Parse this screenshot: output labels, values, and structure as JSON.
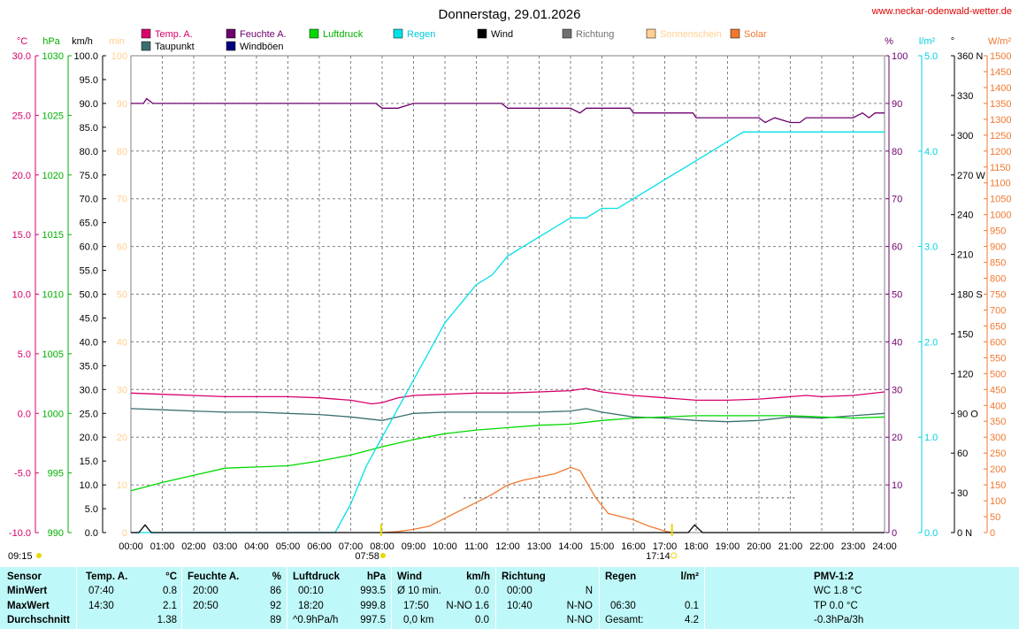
{
  "header": {
    "title": "Donnerstag, 29.01.2026",
    "site": "www.neckar-odenwald-wetter.de"
  },
  "legend": [
    {
      "label": "Temp. A.",
      "color": "#d8006a"
    },
    {
      "label": "Taupunkt",
      "color": "#3a6e6e"
    },
    {
      "label": "Feuchte A.",
      "color": "#6e006e"
    },
    {
      "label": "Windböen",
      "color": "#000080"
    },
    {
      "label": "Luftdruck",
      "color": "#00d800"
    },
    {
      "label": "Regen",
      "color": "#00e0e8"
    },
    {
      "label": "Wind",
      "color": "#000000"
    },
    {
      "label": "Richtung",
      "color": "#707070"
    },
    {
      "label": "Sonnenschein",
      "color": "#ffd090"
    },
    {
      "label": "Solar",
      "color": "#f07830"
    }
  ],
  "axes_units": {
    "temp": "°C",
    "pressure": "hPa",
    "wind": "km/h",
    "sunshine": "min",
    "humidity": "%",
    "rain": "l/m²",
    "direction": "°",
    "solar": "W/m²"
  },
  "time_marks": {
    "left": "09:15",
    "sunrise": "07:58",
    "sunset": "17:14"
  },
  "chart_data": {
    "type": "line",
    "x_unit": "hour of day",
    "xlim": [
      0,
      24
    ],
    "x_ticks": [
      "00:00",
      "01:00",
      "02:00",
      "03:00",
      "04:00",
      "05:00",
      "06:00",
      "07:00",
      "08:00",
      "09:00",
      "10:00",
      "11:00",
      "12:00",
      "13:00",
      "14:00",
      "15:00",
      "16:00",
      "17:00",
      "18:00",
      "19:00",
      "20:00",
      "21:00",
      "22:00",
      "23:00",
      "24:00"
    ],
    "grid": true,
    "axes": {
      "temp_c": {
        "range": [
          -10,
          30
        ],
        "ticks": [
          "-10.0",
          "-5.0",
          "0.0",
          "5.0",
          "10.0",
          "15.0",
          "20.0",
          "25.0",
          "30.0"
        ]
      },
      "pressure_hpa": {
        "range": [
          990,
          1030
        ],
        "ticks": [
          "990",
          "995",
          "1000",
          "1005",
          "1010",
          "1015",
          "1020",
          "1025",
          "1030"
        ]
      },
      "wind_kmh": {
        "range": [
          0,
          100
        ],
        "ticks": [
          "0.0",
          "5.0",
          "10.0",
          "15.0",
          "20.0",
          "25.0",
          "30.0",
          "35.0",
          "40.0",
          "45.0",
          "50.0",
          "55.0",
          "60.0",
          "65.0",
          "70.0",
          "75.0",
          "80.0",
          "85.0",
          "90.0",
          "95.0",
          "100.0"
        ]
      },
      "sunshine_min": {
        "range": [
          0,
          100
        ],
        "ticks": [
          "0",
          "10",
          "20",
          "30",
          "40",
          "50",
          "60",
          "70",
          "80",
          "90",
          "100"
        ]
      },
      "humidity_pct": {
        "range": [
          0,
          100
        ],
        "ticks": [
          "0",
          "10",
          "20",
          "30",
          "40",
          "50",
          "60",
          "70",
          "80",
          "90",
          "100"
        ]
      },
      "rain_lm2": {
        "range": [
          0,
          5
        ],
        "ticks": [
          "0.0",
          "1.0",
          "2.0",
          "3.0",
          "4.0",
          "5.0"
        ]
      },
      "direction_deg": {
        "range": [
          0,
          360
        ],
        "ticks": [
          "0 N",
          "30",
          "60",
          "90 O",
          "120",
          "150",
          "180 S",
          "210",
          "240",
          "270 W",
          "300",
          "330",
          "360 N"
        ]
      },
      "solar_wm2": {
        "range": [
          0,
          1500
        ],
        "ticks": [
          "0",
          "50",
          "100",
          "150",
          "200",
          "250",
          "300",
          "350",
          "400",
          "450",
          "500",
          "550",
          "600",
          "650",
          "700",
          "750",
          "800",
          "850",
          "900",
          "950",
          "1000",
          "1050",
          "1100",
          "1150",
          "1200",
          "1250",
          "1300",
          "1350",
          "1400",
          "1450",
          "1500"
        ]
      }
    },
    "series": [
      {
        "name": "Feuchte A.",
        "axis": "humidity_pct",
        "color": "#6e006e",
        "x": [
          0,
          0.4,
          0.5,
          0.7,
          1,
          2,
          3,
          4,
          5,
          6,
          7,
          7.8,
          8,
          8.5,
          9,
          10,
          11,
          11.8,
          12,
          13,
          14,
          14.3,
          14.5,
          15,
          15.9,
          16,
          17,
          17.9,
          18,
          19,
          20,
          20.2,
          20.5,
          21,
          21.3,
          21.5,
          22,
          23,
          23.3,
          23.5,
          23.7,
          24
        ],
        "y": [
          90,
          90,
          91,
          90,
          90,
          90,
          90,
          90,
          90,
          90,
          90,
          90,
          89,
          89,
          90,
          90,
          90,
          90,
          89,
          89,
          89,
          88,
          89,
          89,
          89,
          88,
          88,
          88,
          87,
          87,
          87,
          86,
          87,
          86,
          86,
          87,
          87,
          87,
          88,
          87,
          88,
          88
        ]
      },
      {
        "name": "Temp. A.",
        "axis": "temp_c",
        "color": "#d8006a",
        "x": [
          0,
          1,
          2,
          3,
          4,
          5,
          6,
          7,
          7.67,
          8,
          8.5,
          9,
          10,
          11,
          12,
          13,
          14,
          14.5,
          15,
          16,
          17,
          18,
          19,
          20,
          21,
          21.5,
          22,
          23,
          24
        ],
        "y": [
          1.7,
          1.6,
          1.5,
          1.4,
          1.4,
          1.4,
          1.3,
          1.1,
          0.8,
          0.9,
          1.3,
          1.5,
          1.6,
          1.7,
          1.7,
          1.8,
          1.9,
          2.1,
          1.8,
          1.5,
          1.3,
          1.1,
          1.1,
          1.2,
          1.4,
          1.5,
          1.4,
          1.5,
          1.8
        ]
      },
      {
        "name": "Taupunkt",
        "axis": "temp_c",
        "color": "#3a6e6e",
        "x": [
          0,
          1,
          2,
          3,
          4,
          5,
          6,
          7,
          8,
          8.5,
          9,
          10,
          11,
          12,
          13,
          14,
          14.5,
          15,
          16,
          17,
          18,
          19,
          20,
          21,
          22,
          23,
          24
        ],
        "y": [
          0.4,
          0.3,
          0.2,
          0.1,
          0.1,
          0.0,
          -0.1,
          -0.3,
          -0.6,
          -0.3,
          0.0,
          0.1,
          0.1,
          0.1,
          0.1,
          0.2,
          0.4,
          0.1,
          -0.3,
          -0.4,
          -0.6,
          -0.7,
          -0.6,
          -0.3,
          -0.4,
          -0.2,
          0.0
        ]
      },
      {
        "name": "Luftdruck",
        "axis": "pressure_hpa",
        "color": "#00d800",
        "x": [
          0,
          1,
          2,
          3,
          4,
          5,
          6,
          7,
          8,
          9,
          10,
          11,
          12,
          13,
          14,
          15,
          16,
          17,
          18,
          19,
          20,
          21,
          22,
          23,
          24
        ],
        "y": [
          993.5,
          994.2,
          994.8,
          995.4,
          995.5,
          995.6,
          996.0,
          996.5,
          997.2,
          997.8,
          998.3,
          998.6,
          998.8,
          999.0,
          999.1,
          999.4,
          999.6,
          999.7,
          999.8,
          999.8,
          999.8,
          999.8,
          999.7,
          999.6,
          999.7
        ]
      },
      {
        "name": "Regen",
        "axis": "rain_lm2",
        "color": "#00e0e8",
        "x": [
          0,
          6.5,
          7,
          7.5,
          8,
          8.5,
          9,
          9.5,
          10,
          10.5,
          11,
          11.5,
          12,
          12.5,
          13,
          13.5,
          14,
          14.5,
          15,
          15.5,
          16,
          16.5,
          17,
          17.5,
          18,
          18.5,
          19,
          19.5,
          20,
          21,
          22,
          23,
          24
        ],
        "y": [
          0,
          0,
          0.3,
          0.7,
          1.0,
          1.3,
          1.6,
          1.9,
          2.2,
          2.4,
          2.6,
          2.7,
          2.9,
          3.0,
          3.1,
          3.2,
          3.3,
          3.3,
          3.4,
          3.4,
          3.5,
          3.6,
          3.7,
          3.8,
          3.9,
          4.0,
          4.1,
          4.2,
          4.2,
          4.2,
          4.2,
          4.2,
          4.2
        ]
      },
      {
        "name": "Solar",
        "axis": "solar_wm2",
        "color": "#f07830",
        "x": [
          7.97,
          8.5,
          9,
          9.5,
          10,
          10.5,
          11,
          11.5,
          12,
          12.5,
          13,
          13.5,
          14,
          14.3,
          14.8,
          15.2,
          15.6,
          16,
          16.5,
          17,
          17.23
        ],
        "y": [
          0,
          3,
          10,
          20,
          45,
          70,
          95,
          120,
          150,
          165,
          175,
          185,
          205,
          195,
          110,
          60,
          50,
          40,
          20,
          5,
          0
        ]
      },
      {
        "name": "Sonnenschein",
        "axis": "sunshine_min",
        "color": "#707070",
        "x": [
          10.6,
          21.2
        ],
        "y": [
          7.3,
          7.3
        ]
      },
      {
        "name": "Wind",
        "axis": "wind_kmh",
        "color": "#000000",
        "x": [
          0,
          0.25,
          0.45,
          0.65,
          17.5,
          17.75,
          17.95,
          18.2,
          24
        ],
        "y": [
          0,
          0,
          1.6,
          0,
          0,
          0,
          1.6,
          0,
          0
        ]
      }
    ]
  },
  "table": {
    "headers": [
      "Sensor",
      "Temp. A.",
      "°C",
      "Feuchte A.",
      "%",
      "Luftdruck",
      "hPa",
      "Wind",
      "km/h",
      "Richtung",
      "Regen",
      "l/m²",
      "PMV-1:2"
    ],
    "labels": [
      "MinWert",
      "MaxWert",
      "Durchschnitt"
    ],
    "temp": [
      [
        "07:40",
        "0.8"
      ],
      [
        "14:30",
        "2.1"
      ],
      [
        "",
        "1.38"
      ]
    ],
    "humidity": [
      [
        "20:00",
        "86"
      ],
      [
        "20:50",
        "92"
      ],
      [
        "",
        "89"
      ]
    ],
    "pressure": [
      [
        "00:10",
        "993.5"
      ],
      [
        "18:20",
        "999.8"
      ],
      [
        "^0.9hPa/h",
        "997.5"
      ]
    ],
    "wind": [
      [
        "Ø 10 min.",
        "0.0"
      ],
      [
        "17:50",
        "N-NO 1.6"
      ],
      [
        "0,0 km",
        "0.0"
      ]
    ],
    "direction": [
      [
        "00:00",
        "N"
      ],
      [
        "10:40",
        "N-NO"
      ],
      [
        "",
        "N-NO"
      ]
    ],
    "rain": [
      [
        "",
        ""
      ],
      [
        "06:30",
        "0.1"
      ],
      [
        "Gesamt:",
        "4.2"
      ]
    ],
    "pmv": [
      "WC 1.8 °C",
      "TP 0.0 °C",
      "-0.3hPa/3h"
    ]
  }
}
